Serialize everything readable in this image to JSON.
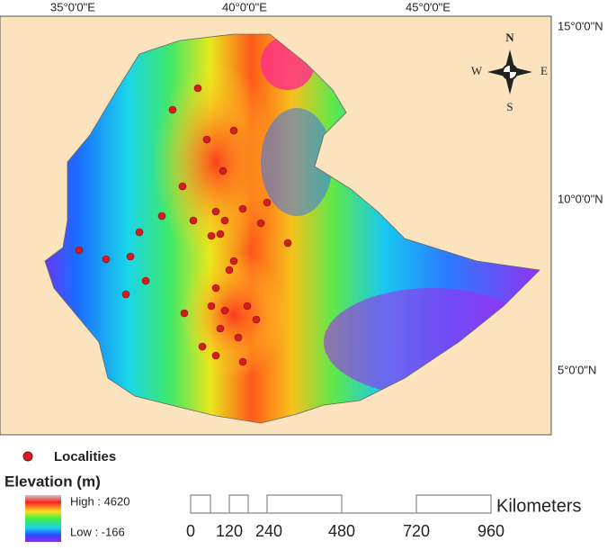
{
  "map": {
    "longitude_labels": [
      "35°0'0\"E",
      "40°0'0\"E",
      "45°0'0\"E"
    ],
    "latitude_labels": [
      "15°0'0\"N",
      "10°0'0\"N",
      "5°0'0\"N"
    ],
    "compass": {
      "north": "N",
      "south": "S",
      "east": "E",
      "west": "W"
    }
  },
  "legend": {
    "points": "Localities",
    "elevation_title": "Elevation (m)",
    "high": "High : 4620",
    "low": "Low : -166"
  },
  "scale_bar": {
    "labels": [
      "0",
      "120",
      "240",
      "480",
      "720",
      "960"
    ],
    "unit": "Kilometers"
  }
}
